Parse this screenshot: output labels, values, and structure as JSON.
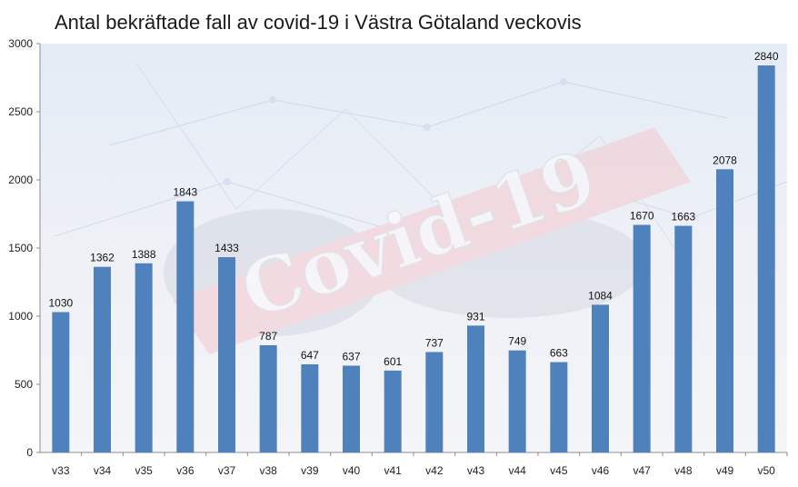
{
  "chart_data": {
    "type": "bar",
    "title": "Antal bekräftade fall av covid-19 i Västra Götaland veckovis",
    "watermark_text": "Covid-19",
    "categories": [
      "v33",
      "v34",
      "v35",
      "v36",
      "v37",
      "v38",
      "v39",
      "v40",
      "v41",
      "v42",
      "v43",
      "v44",
      "v45",
      "v46",
      "v47",
      "v48",
      "v49",
      "v50"
    ],
    "values": [
      1030,
      1362,
      1388,
      1843,
      1433,
      787,
      647,
      637,
      601,
      737,
      931,
      749,
      663,
      1084,
      1670,
      1663,
      2078,
      2840
    ],
    "ylim": [
      0,
      3000
    ],
    "yticks": [
      0,
      500,
      1000,
      1500,
      2000,
      2500,
      3000
    ],
    "xlabel": "",
    "ylabel": "",
    "grid": false,
    "legend": "none",
    "bar_color": "#4f81bd"
  }
}
